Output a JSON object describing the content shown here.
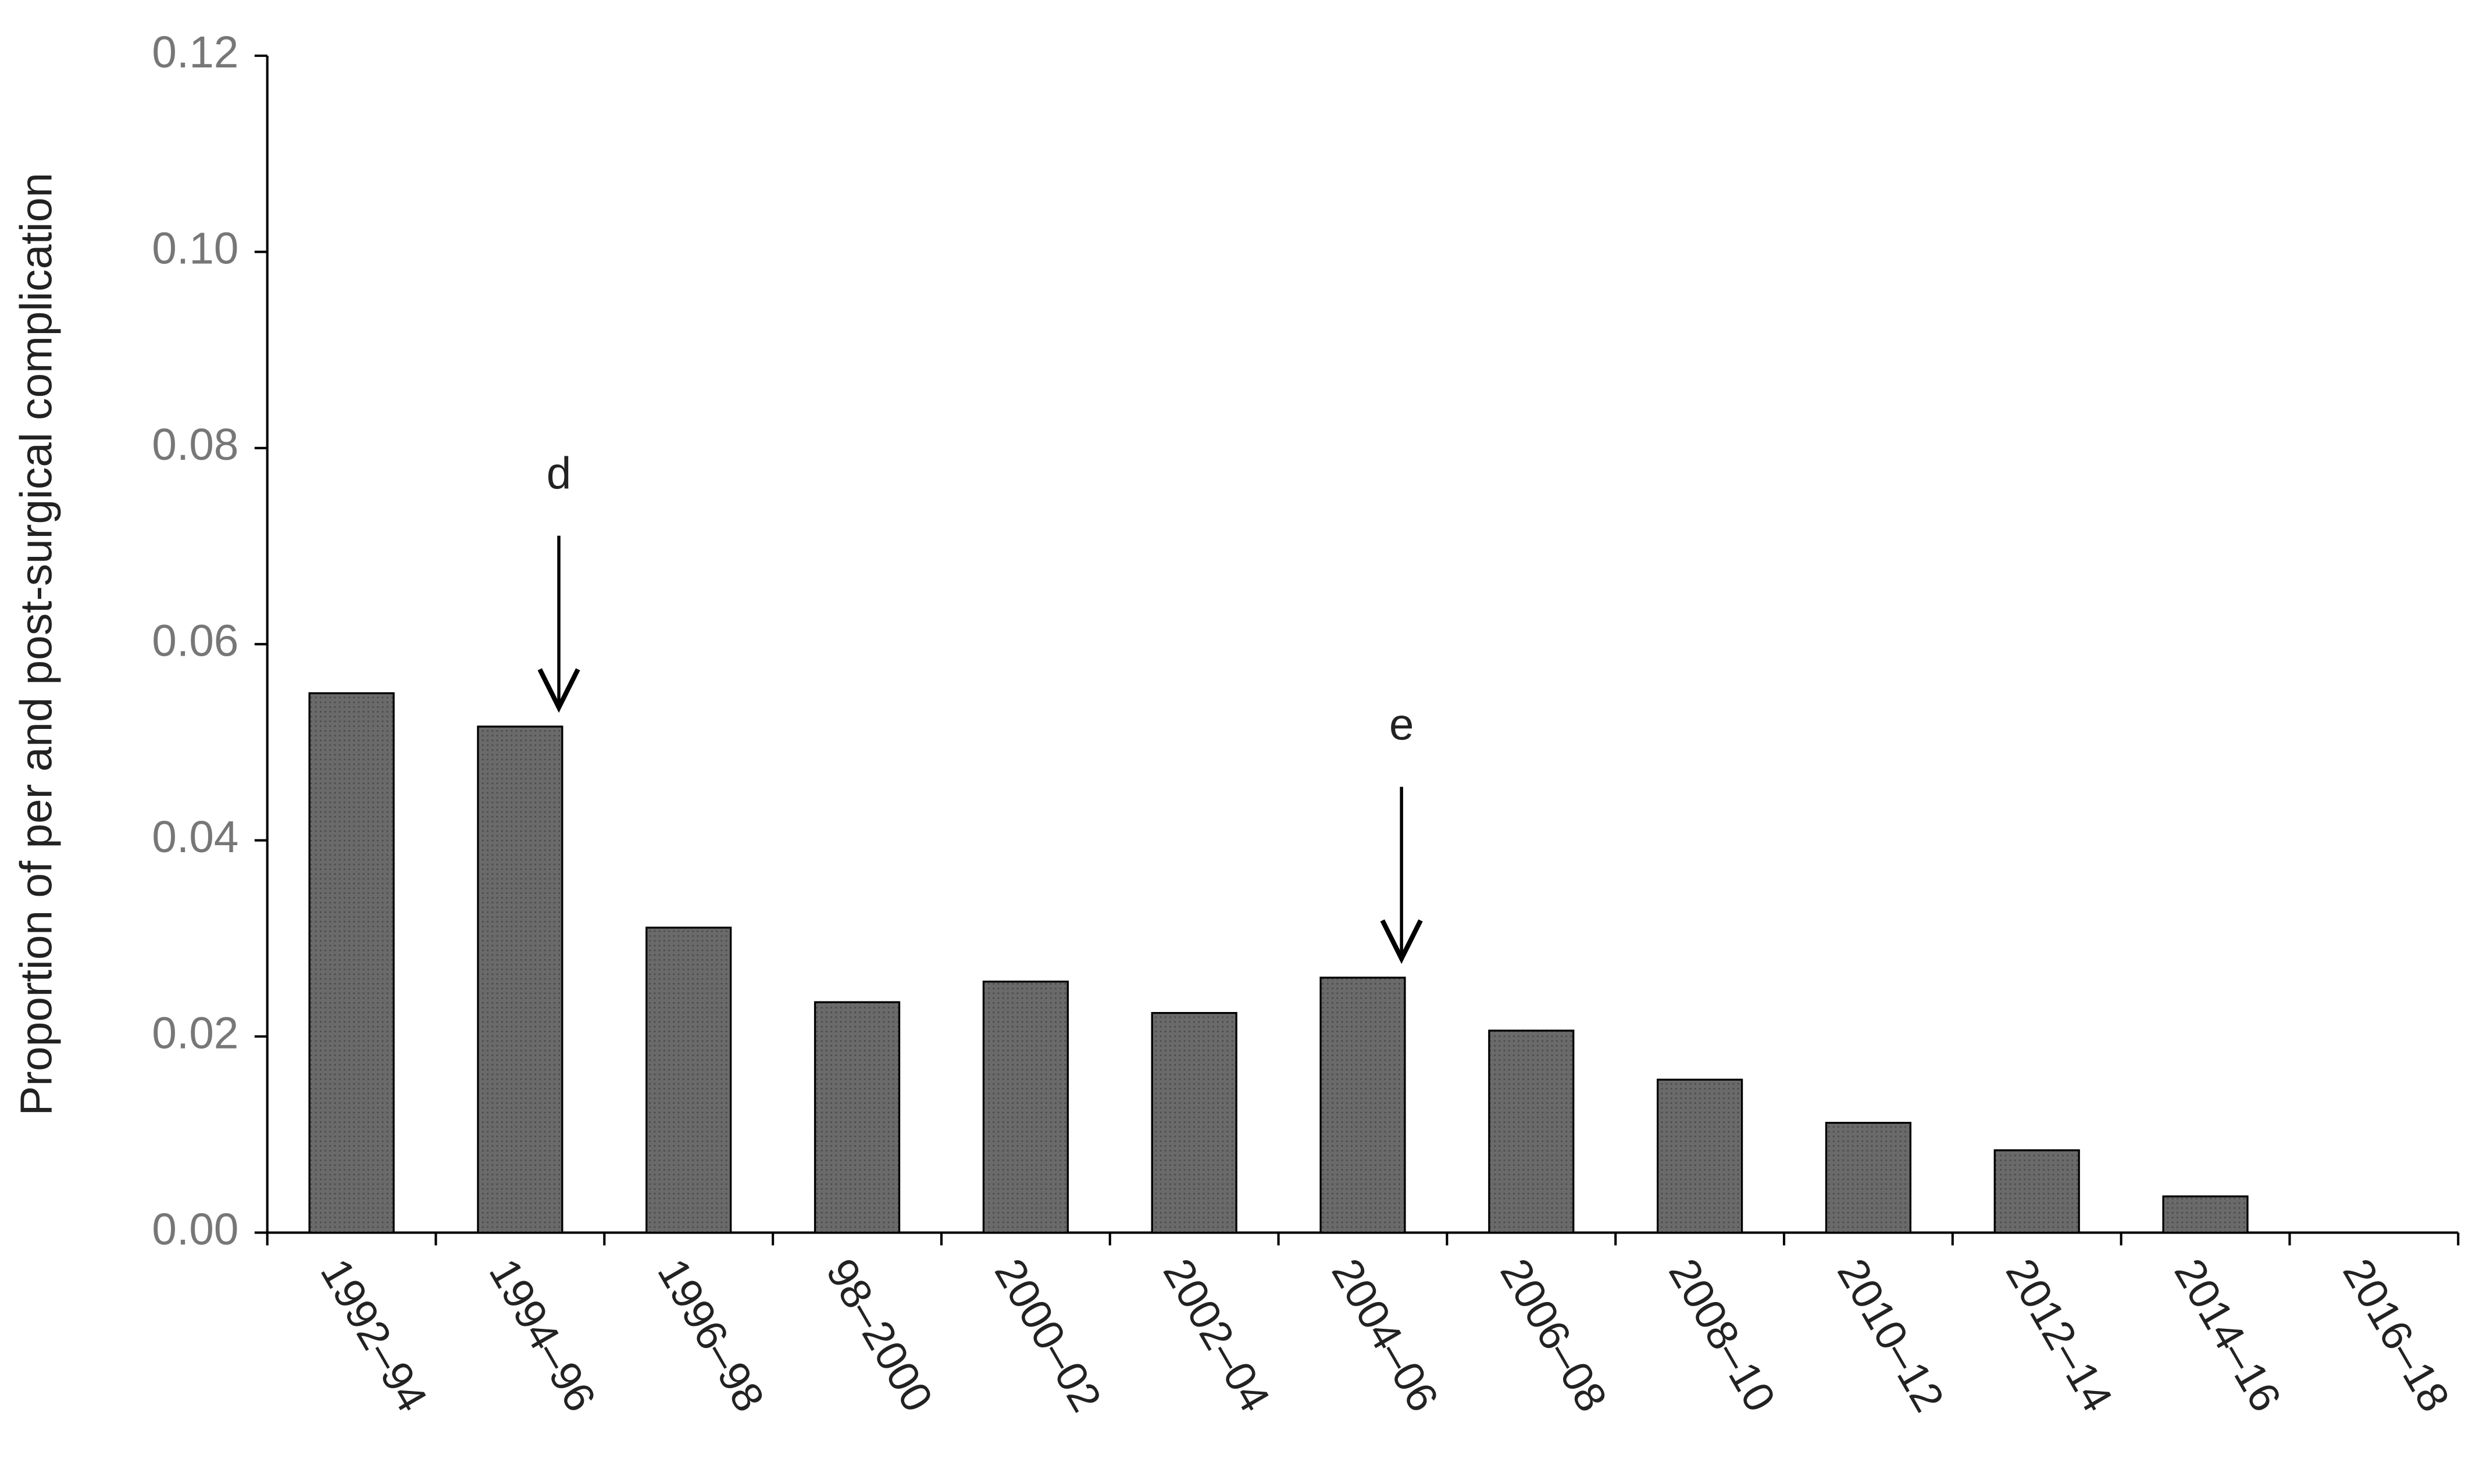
{
  "chart_data": {
    "type": "bar",
    "y_label": "Proportion of per and post-surgical complication",
    "categories": [
      "1992–94",
      "1994–96",
      "1996–98",
      "98–2000",
      "2000–02",
      "2002–04",
      "2004–06",
      "2006–08",
      "2008–10",
      "2010–12",
      "2012–14",
      "2014–16",
      "2016–18"
    ],
    "values": [
      0.055,
      0.0516,
      0.0311,
      0.0235,
      0.0256,
      0.0224,
      0.026,
      0.0206,
      0.0156,
      0.0112,
      0.0084,
      0.0037,
      0
    ],
    "color": "#666666",
    "ylim": [
      0,
      0.12
    ],
    "yticks": [
      {
        "value": 0,
        "label": "0.00"
      },
      {
        "value": 0.02,
        "label": "0.02"
      },
      {
        "value": 0.04,
        "label": "0.04"
      },
      {
        "value": 0.06,
        "label": "0.06"
      },
      {
        "value": 0.08,
        "label": "0.08"
      },
      {
        "value": 0.1,
        "label": "0.10"
      },
      {
        "value": 0.12,
        "label": "0.12"
      }
    ],
    "grid": false,
    "annotations": [
      {
        "text": "d",
        "category": "1994–96"
      },
      {
        "text": "e",
        "category": "2004–06"
      }
    ]
  }
}
